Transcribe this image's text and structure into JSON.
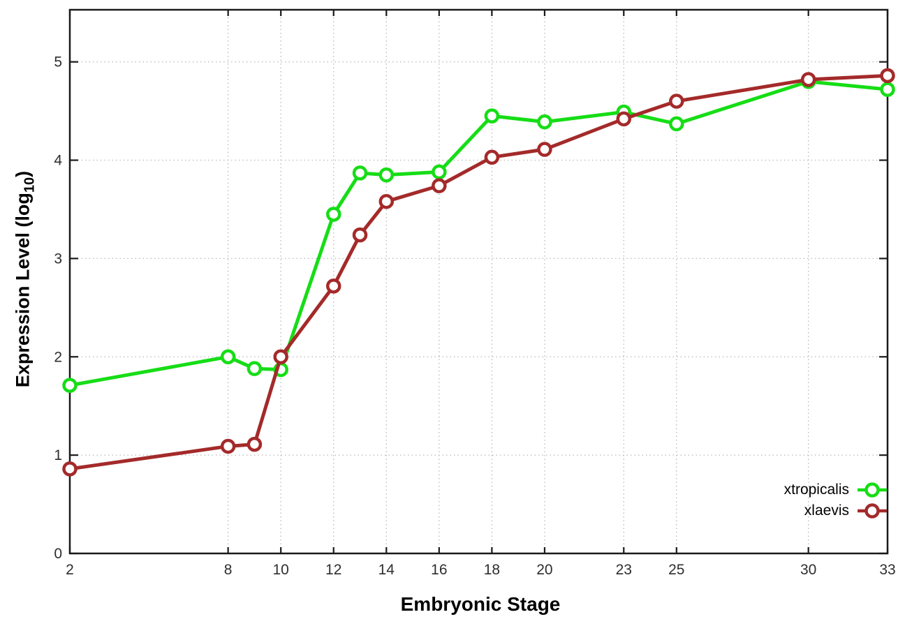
{
  "chart_data": {
    "type": "line",
    "title": "",
    "xlabel": "Embryonic Stage",
    "ylabel": {
      "prefix": "Expression Level (log",
      "sub": "10",
      "suffix": ")"
    },
    "x": [
      2,
      8,
      9,
      10,
      12,
      13,
      14,
      16,
      18,
      20,
      23,
      25,
      30,
      33
    ],
    "series": [
      {
        "name": "xtropicalis",
        "color": "#16dd16",
        "values": [
          1.71,
          2.0,
          1.88,
          1.87,
          3.45,
          3.87,
          3.85,
          3.88,
          4.45,
          4.39,
          4.49,
          4.37,
          4.8,
          4.72
        ]
      },
      {
        "name": "xlaevis",
        "color": "#a42a2a",
        "values": [
          0.86,
          1.09,
          1.11,
          2.0,
          2.72,
          3.24,
          3.58,
          3.74,
          4.03,
          4.11,
          4.42,
          4.6,
          4.82,
          4.86
        ]
      }
    ],
    "xlim": [
      2,
      33
    ],
    "ylim": [
      0,
      5.53
    ],
    "xticks": [
      2,
      8,
      10,
      12,
      14,
      16,
      18,
      20,
      23,
      25,
      30,
      33
    ],
    "yticks": [
      0,
      1,
      2,
      3,
      4,
      5
    ],
    "grid": "dotted",
    "grid_color": "#b8b8b8",
    "border_color": "#1a1a1a",
    "tick_label_color": "#2e2e2e",
    "legend_position": "bottom-right-inside",
    "marker": "open-circle"
  }
}
